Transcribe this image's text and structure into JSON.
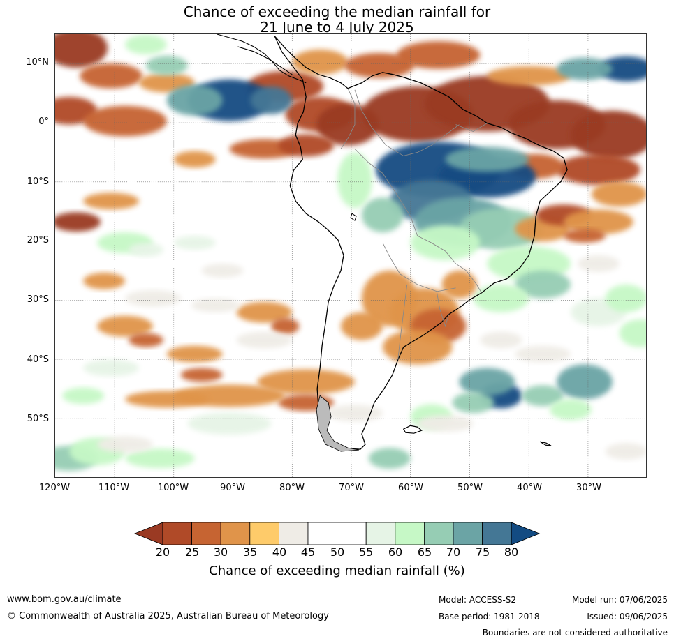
{
  "title": {
    "line1": "Chance of exceeding the median rainfall for",
    "line2": "21 June to 4 July 2025"
  },
  "map": {
    "region": "South America",
    "lon_range": [
      -120,
      -20
    ],
    "lat_range": [
      -60,
      15
    ],
    "lat_labels": [
      "10°N",
      "0°",
      "10°S",
      "20°S",
      "30°S",
      "40°S",
      "50°S"
    ],
    "lon_labels": [
      "120°W",
      "110°W",
      "100°W",
      "90°W",
      "80°W",
      "70°W",
      "60°W",
      "50°W",
      "40°W",
      "30°W"
    ],
    "gridlines": true
  },
  "colorbar": {
    "label": "Chance of exceeding median rainfall (%)",
    "ticks": [
      "20",
      "25",
      "30",
      "35",
      "40",
      "45",
      "50",
      "55",
      "60",
      "65",
      "70",
      "75",
      "80"
    ],
    "colors": [
      "#9a3a23",
      "#b04a28",
      "#c66432",
      "#e0944a",
      "#fecb6a",
      "#efece6",
      "#ffffff",
      "#ffffff",
      "#e6f4e6",
      "#c6f8c6",
      "#96cdb4",
      "#6ba4a5",
      "#447795",
      "#134b82"
    ],
    "extend": "both"
  },
  "footer": {
    "website": "www.bom.gov.au/climate",
    "copyright": "© Commonwealth of Australia 2025, Australian Bureau of Meteorology",
    "model": "Model: ACCESS-S2",
    "base_period": "Base period: 1981-2018",
    "model_run": "Model run: 07/06/2025",
    "issued": "Issued: 09/06/2025",
    "disclaimer": "Boundaries are not considered authoritative"
  }
}
